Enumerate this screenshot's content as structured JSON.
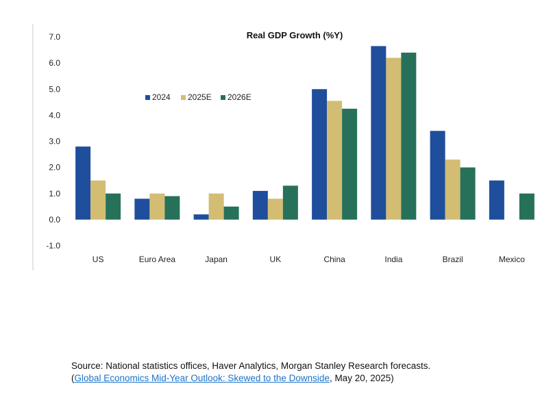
{
  "chart_data": {
    "type": "bar",
    "title": "Real GDP Growth (%Y)",
    "categories": [
      "US",
      "Euro Area",
      "Japan",
      "UK",
      "China",
      "India",
      "Brazil",
      "Mexico"
    ],
    "series": [
      {
        "name": "2024",
        "color": "#1f4e9c",
        "values": [
          2.8,
          0.8,
          0.2,
          1.1,
          5.0,
          6.65,
          3.4,
          1.5
        ]
      },
      {
        "name": "2025E",
        "color": "#d2bd73",
        "values": [
          1.5,
          1.0,
          1.0,
          0.8,
          4.55,
          6.2,
          2.3,
          null
        ]
      },
      {
        "name": "2026E",
        "color": "#27715a",
        "values": [
          1.0,
          0.9,
          0.5,
          1.3,
          4.25,
          6.4,
          2.0,
          1.0
        ]
      }
    ],
    "yticks": [
      "7.0",
      "6.0",
      "5.0",
      "4.0",
      "3.0",
      "2.0",
      "1.0",
      "0.0",
      "-1.0"
    ],
    "ylim": [
      -1.0,
      7.0
    ],
    "xlabel": "",
    "ylabel": "",
    "grid": false,
    "legend_position": "top-left"
  },
  "source": {
    "line1": "Source: National statistics offices, Haver Analytics, Morgan Stanley Research forecasts.",
    "open_paren": "(",
    "link_text": "Global Economics Mid-Year Outlook: Skewed to the Downside",
    "date_suffix": ", May 20, 2025)"
  }
}
